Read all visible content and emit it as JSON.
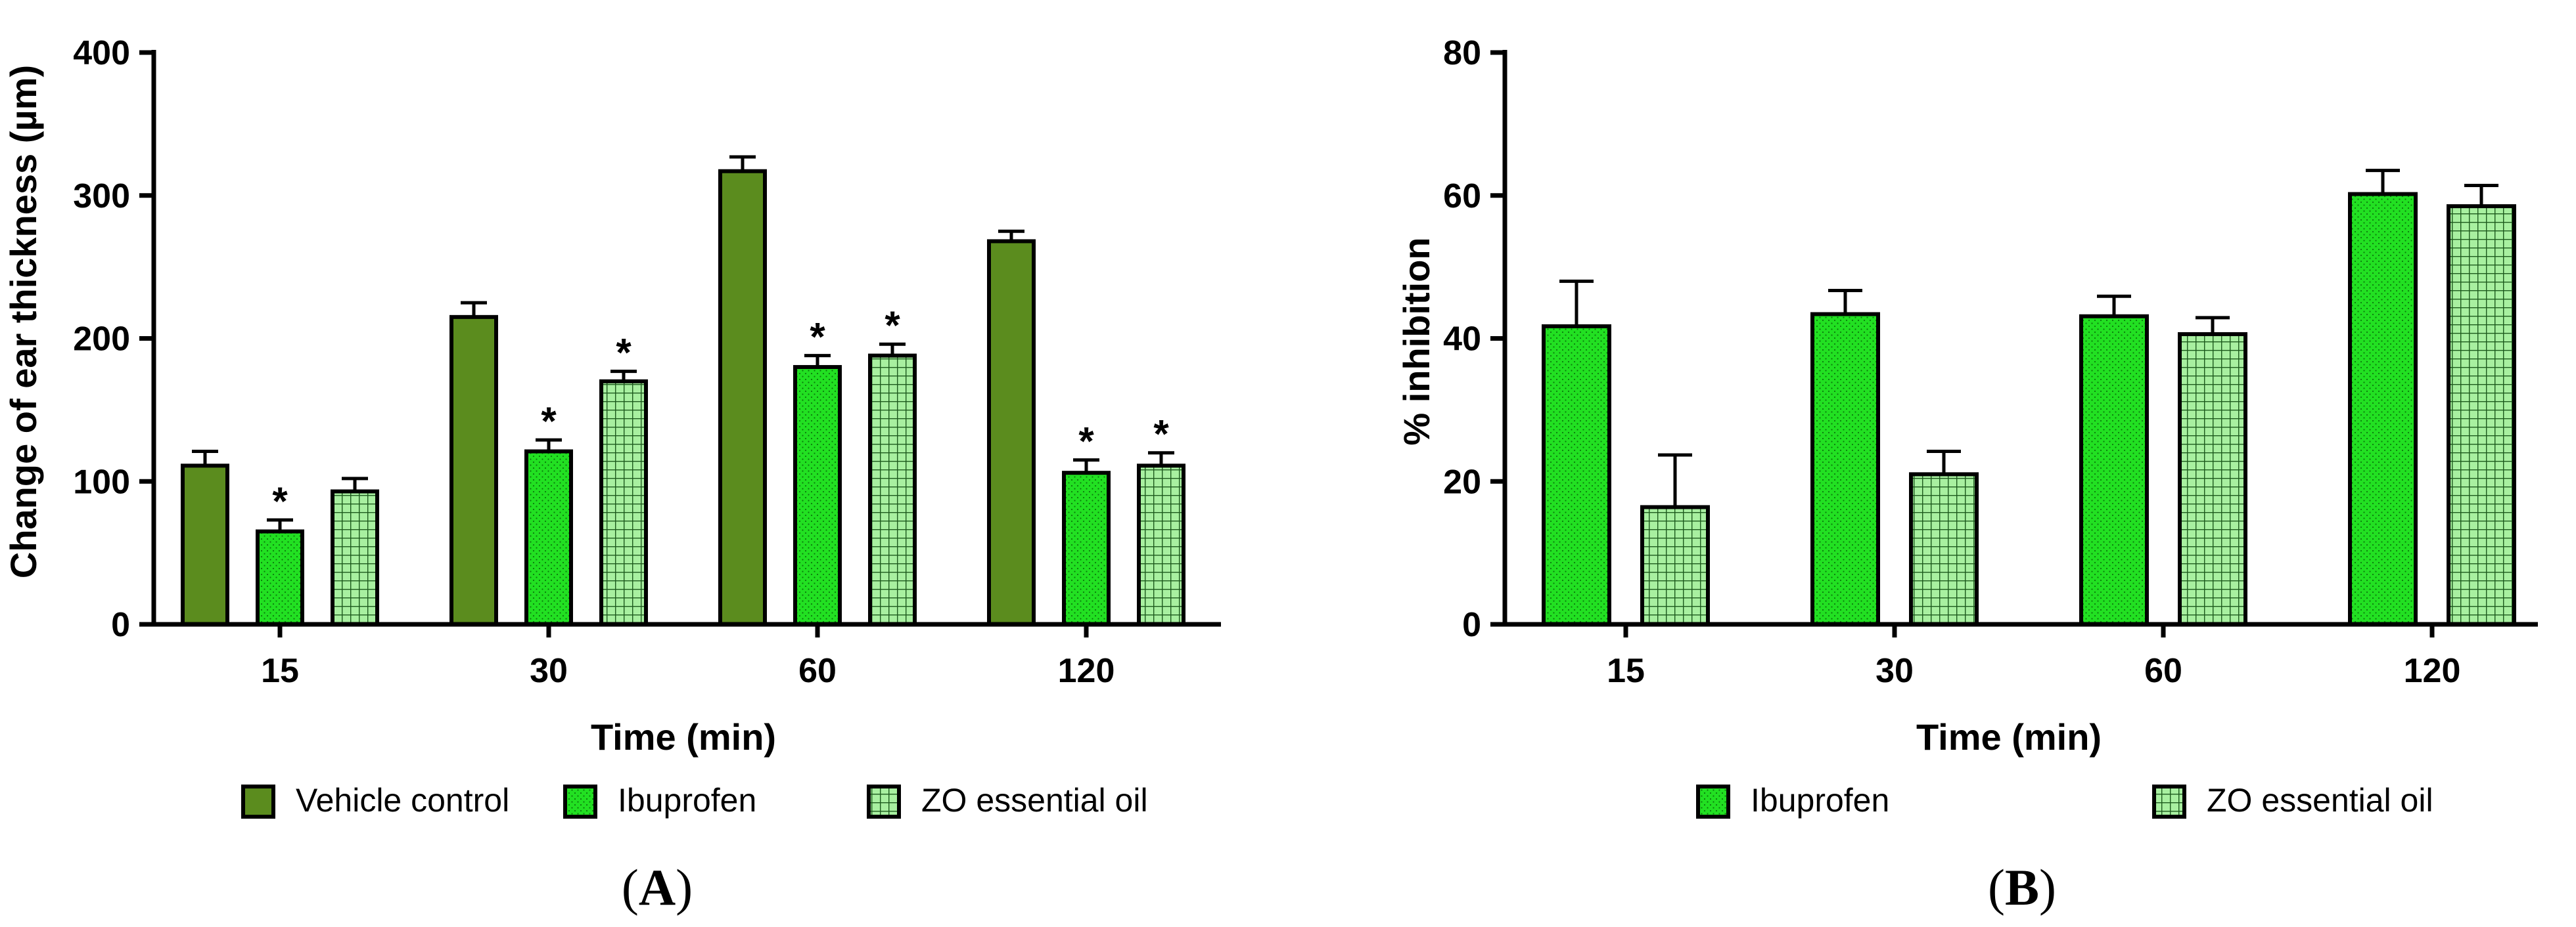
{
  "colors": {
    "vehicle": "#5b8c1e",
    "ibuprofen": "#22e022",
    "zo": "#a8f0a0",
    "zo_grid": "#1d5a1d",
    "ibu_dots": "#0b7a0b",
    "axis": "#000000"
  },
  "chart_data": [
    {
      "type": "bar",
      "panel_label": "A",
      "title": "",
      "xlabel": "Time (min)",
      "ylabel": "Change of ear thickness (µm)",
      "categories": [
        "15",
        "30",
        "60",
        "120"
      ],
      "ylim": [
        0,
        400
      ],
      "yticks": [
        0,
        100,
        200,
        300,
        400
      ],
      "series": [
        {
          "name": "Vehicle control",
          "key": "vehicle",
          "values": [
            111,
            215,
            317,
            268
          ],
          "errors": [
            10,
            10,
            10,
            7
          ],
          "significant": [
            false,
            false,
            false,
            false
          ]
        },
        {
          "name": "Ibuprofen",
          "key": "ibuprofen",
          "values": [
            65,
            121,
            180,
            106
          ],
          "errors": [
            8,
            8,
            8,
            9
          ],
          "significant": [
            true,
            true,
            true,
            true
          ]
        },
        {
          "name": "ZO essential oil",
          "key": "zo",
          "values": [
            93,
            170,
            188,
            111
          ],
          "errors": [
            9,
            7,
            8,
            9
          ],
          "significant": [
            false,
            true,
            true,
            true
          ]
        }
      ],
      "significance_marker": "*",
      "legend_position": "bottom"
    },
    {
      "type": "bar",
      "panel_label": "B",
      "title": "",
      "xlabel": "Time (min)",
      "ylabel": "% inhibition",
      "categories": [
        "15",
        "30",
        "60",
        "120"
      ],
      "ylim": [
        0,
        80
      ],
      "yticks": [
        0,
        20,
        40,
        60,
        80
      ],
      "series": [
        {
          "name": "Ibuprofen",
          "key": "ibuprofen",
          "values": [
            41.7,
            43.4,
            43.1,
            60.2
          ],
          "errors": [
            6.3,
            3.3,
            2.8,
            3.3
          ],
          "significant": [
            false,
            false,
            false,
            false
          ]
        },
        {
          "name": "ZO essential oil",
          "key": "zo",
          "values": [
            16.4,
            21.0,
            40.6,
            58.5
          ],
          "errors": [
            7.3,
            3.2,
            2.3,
            2.9
          ],
          "significant": [
            false,
            false,
            false,
            false
          ]
        }
      ],
      "legend_position": "bottom"
    }
  ]
}
